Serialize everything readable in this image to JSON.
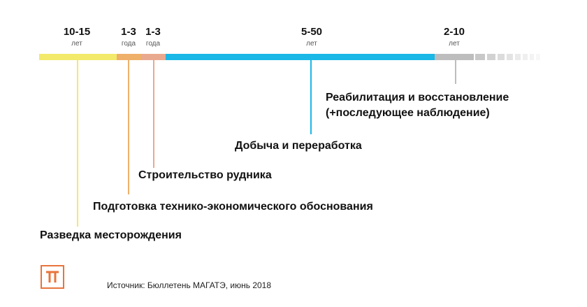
{
  "timeline": {
    "durations": [
      {
        "value": "10-15",
        "unit": "лет"
      },
      {
        "value": "1-3",
        "unit": "года"
      },
      {
        "value": "1-3",
        "unit": "года"
      },
      {
        "value": "5-50",
        "unit": "лет"
      },
      {
        "value": "2-10",
        "unit": "лет"
      }
    ],
    "stages": [
      {
        "label": "Разведка месторождения",
        "color": "#f3e96b"
      },
      {
        "label": "Подготовка технико-экономического обоснования",
        "color": "#efb06a"
      },
      {
        "label": "Строительство рудника",
        "color": "#e9a98f"
      },
      {
        "label": "Добыча и переработка",
        "color": "#1ab8e6"
      },
      {
        "label": "Реабилитация и восстановление",
        "label_line2": "(+последующее наблюдение)",
        "color": "#bdbdbd"
      }
    ]
  },
  "footer": {
    "source": "Источник: Бюллетень МАГАТЭ, июнь 2018"
  },
  "logo": {
    "icon": "pi-icon",
    "color": "#e8743b"
  }
}
